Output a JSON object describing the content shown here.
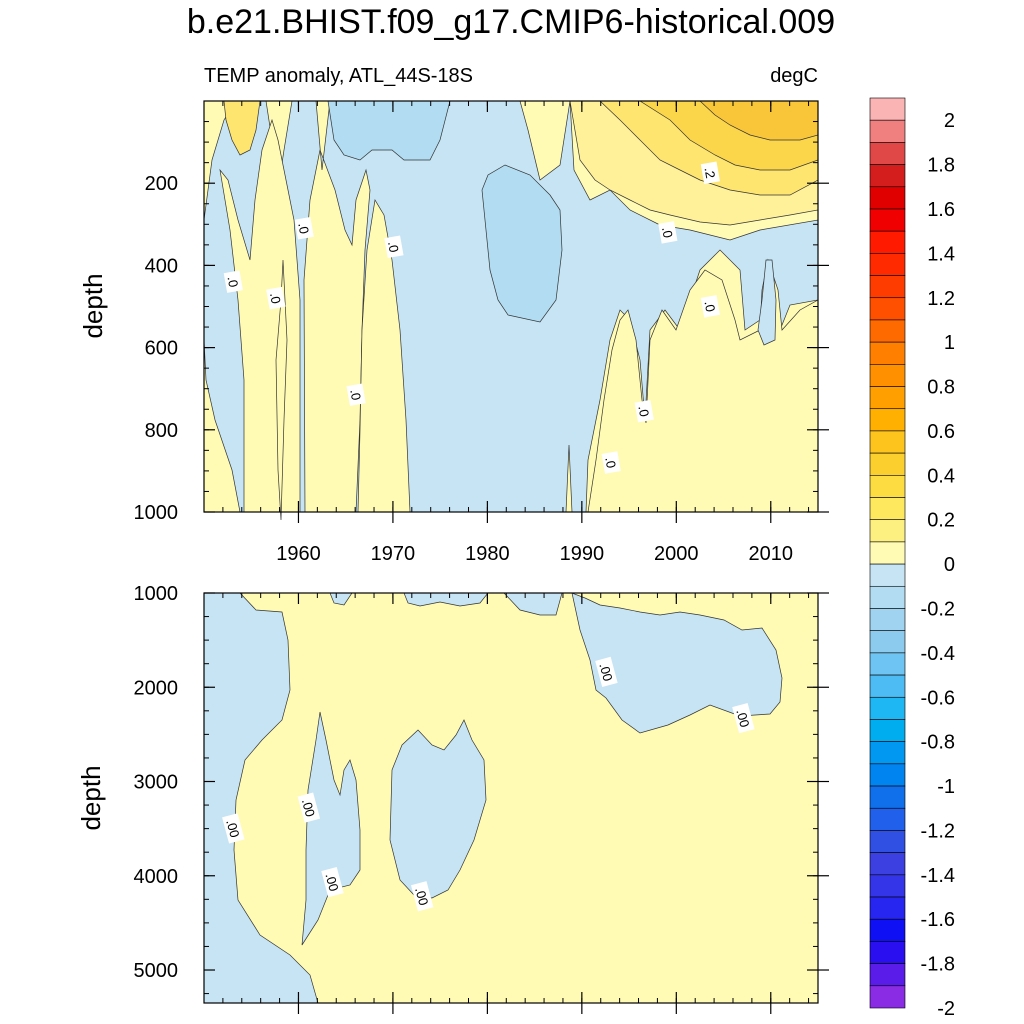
{
  "title": "b.e21.BHIST.f09_g17.CMIP6-historical.009",
  "left_string": "TEMP anomaly, ATL_44S-18S",
  "right_string": "degC",
  "colors": {
    "neg_light": "#c6e4f4",
    "neg_mid": "#b1dcf1",
    "pos_light": "#fffbb4",
    "pos_1": "#fff09a",
    "pos_2": "#fee56f",
    "pos_3": "#fbd54a",
    "pos_4": "#f8c638",
    "frame": "#000000"
  },
  "chart_data": [
    {
      "type": "heatmap",
      "panel": "upper",
      "xlabel": "",
      "ylabel": "depth",
      "xlim": [
        1950,
        2015
      ],
      "ylim": [
        1000,
        0
      ],
      "x_ticks": [
        1960,
        1970,
        1980,
        1990,
        2000,
        2010
      ],
      "x_tick_labels": [
        "1960",
        "1970",
        "1980",
        "1990",
        "2000",
        "2010"
      ],
      "y_ticks": [
        200,
        400,
        600,
        800,
        1000
      ],
      "y_tick_labels": [
        "200",
        "400",
        "600",
        "800",
        "1000"
      ],
      "contour_labels": [
        {
          "text": ".0",
          "x": 1953,
          "y": 440
        },
        {
          "text": ".0",
          "x": 1957.5,
          "y": 480
        },
        {
          "text": ".0",
          "x": 1960.5,
          "y": 310
        },
        {
          "text": ".0",
          "x": 1966,
          "y": 715
        },
        {
          "text": ".0",
          "x": 1970,
          "y": 355
        },
        {
          "text": ".0",
          "x": 1993,
          "y": 880
        },
        {
          "text": ".0",
          "x": 1996.5,
          "y": 755
        },
        {
          "text": ".0",
          "x": 1999,
          "y": 320
        },
        {
          "text": ".0",
          "x": 2003.5,
          "y": 500
        },
        {
          "text": ".2",
          "x": 2003.5,
          "y": 175
        }
      ],
      "regions": [
        {
          "sign": "negative",
          "level": -0.1,
          "x_range": [
            1950,
            1993
          ],
          "depth_range": [
            0,
            1000
          ]
        },
        {
          "sign": "negative",
          "level": -0.2,
          "x_range": [
            1963,
            1988
          ],
          "depth_range": [
            0,
            540
          ]
        },
        {
          "sign": "positive",
          "level": 0.1,
          "x_range": [
            1990,
            2015
          ],
          "depth_range": [
            0,
            1000
          ]
        },
        {
          "sign": "positive",
          "level": 0.4,
          "x_range": [
            1995,
            2015
          ],
          "depth_range": [
            0,
            200
          ]
        }
      ]
    },
    {
      "type": "heatmap",
      "panel": "lower",
      "xlabel": "",
      "ylabel": "depth",
      "xlim": [
        1950,
        2015
      ],
      "ylim": [
        5350,
        1000
      ],
      "x_ticks": [
        1960,
        1970,
        1980,
        1990,
        2000,
        2010
      ],
      "y_ticks": [
        1000,
        2000,
        3000,
        4000,
        5000
      ],
      "y_tick_labels": [
        "1000",
        "2000",
        "3000",
        "4000",
        "5000"
      ],
      "contour_labels": [
        {
          "text": ".00",
          "x": 1953,
          "y": 3500
        },
        {
          "text": ".00",
          "x": 1961,
          "y": 3280
        },
        {
          "text": ".00",
          "x": 1963.5,
          "y": 4070
        },
        {
          "text": ".00",
          "x": 1973,
          "y": 4220
        },
        {
          "text": ".00",
          "x": 1992.5,
          "y": 1840
        },
        {
          "text": ".00",
          "x": 2007,
          "y": 2330
        }
      ]
    }
  ],
  "colorbar": {
    "labels": [
      "2",
      "1.8",
      "1.6",
      "1.4",
      "1.2",
      "1",
      "0.8",
      "0.6",
      "0.4",
      "0.2",
      "0",
      "-0.2",
      "-0.4",
      "-0.6",
      "-0.8",
      "-1",
      "-1.2",
      "-1.4",
      "-1.6",
      "-1.8",
      "-2"
    ],
    "colors": [
      "#fbb4b4",
      "#f08080",
      "#e04848",
      "#d41e1e",
      "#e00000",
      "#f00000",
      "#ff1a00",
      "#ff2a00",
      "#ff3c00",
      "#ff5000",
      "#ff6a00",
      "#ff8000",
      "#ff9000",
      "#ffa000",
      "#ffb000",
      "#fcc41c",
      "#fbd02e",
      "#fcdc40",
      "#fde85e",
      "#fef080",
      "#fffbb4",
      "#c6e4f4",
      "#b1dcf1",
      "#9fd3ef",
      "#8ccaee",
      "#6ec4f2",
      "#4ebcf4",
      "#1fb6f4",
      "#00aef0",
      "#0098f0",
      "#0084f0",
      "#1070ec",
      "#2060ea",
      "#3050e4",
      "#3c40e0",
      "#3434e8",
      "#2626f0",
      "#1010f4",
      "#2a10f0",
      "#5a1ce8",
      "#8a2ce4"
    ]
  }
}
